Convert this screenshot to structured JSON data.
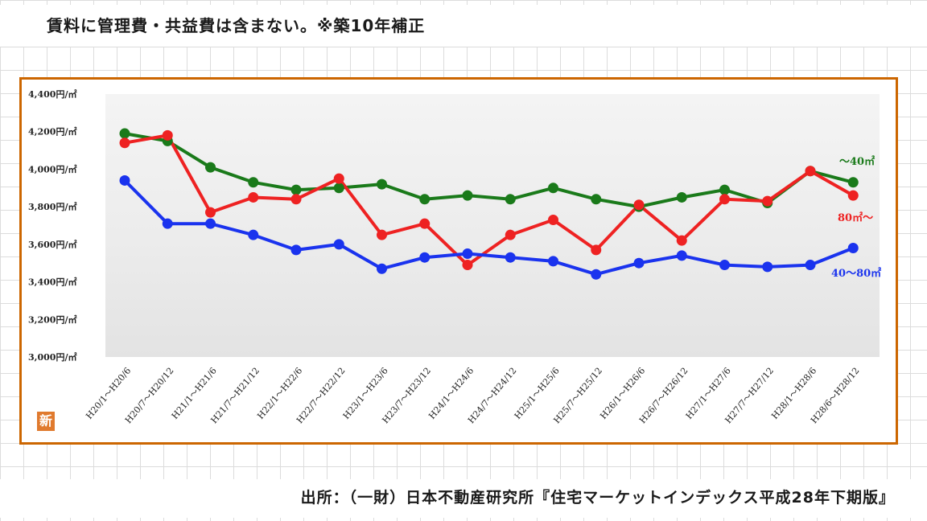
{
  "header": {
    "note": "賃料に管理費・共益費は含まない。※築10年補正"
  },
  "footer": {
    "source": "出所：（一財）日本不動産研究所『住宅マーケットインデックス平成28年下期版』"
  },
  "logo": {
    "glyph": "新",
    "color": "#e07a2e"
  },
  "frame": {
    "border_color": "#cc6600"
  },
  "chart_data": {
    "type": "line",
    "categories": [
      "H20/1～H20/6",
      "H20/7～H20/12",
      "H21/1～H21/6",
      "H21/7～H21/12",
      "H22/1～H22/6",
      "H22/7～H22/12",
      "H23/1～H23/6",
      "H23/7～H23/12",
      "H24/1～H24/6",
      "H24/7～H24/12",
      "H25/1～H25/6",
      "H25/7～H25/12",
      "H26/1～H26/6",
      "H26/7～H26/12",
      "H27/1～H27/6",
      "H27/7～H27/12",
      "H28/1～H28/6",
      "H28/6～H28/12"
    ],
    "yticks": [
      "3,000円/㎡",
      "3,200円/㎡",
      "3,400円/㎡",
      "3,600円/㎡",
      "3,800円/㎡",
      "4,000円/㎡",
      "4,200円/㎡",
      "4,400円/㎡"
    ],
    "ylim": [
      3000,
      4400
    ],
    "series": [
      {
        "name": "～40㎡",
        "color": "#1a7a1a",
        "values": [
          4190,
          4150,
          4010,
          3930,
          3890,
          3900,
          3920,
          3840,
          3860,
          3840,
          3900,
          3840,
          3800,
          3850,
          3890,
          3820,
          3990,
          3930
        ]
      },
      {
        "name": "80㎡～",
        "color": "#ee2222",
        "values": [
          4140,
          4180,
          3770,
          3850,
          3840,
          3950,
          3650,
          3710,
          3490,
          3650,
          3730,
          3570,
          3810,
          3620,
          3840,
          3830,
          3990,
          3860
        ]
      },
      {
        "name": "40～80㎡",
        "color": "#1a33ee",
        "values": [
          3940,
          3710,
          3710,
          3650,
          3570,
          3600,
          3470,
          3530,
          3550,
          3530,
          3510,
          3440,
          3500,
          3540,
          3490,
          3480,
          3490,
          3580
        ]
      }
    ]
  }
}
